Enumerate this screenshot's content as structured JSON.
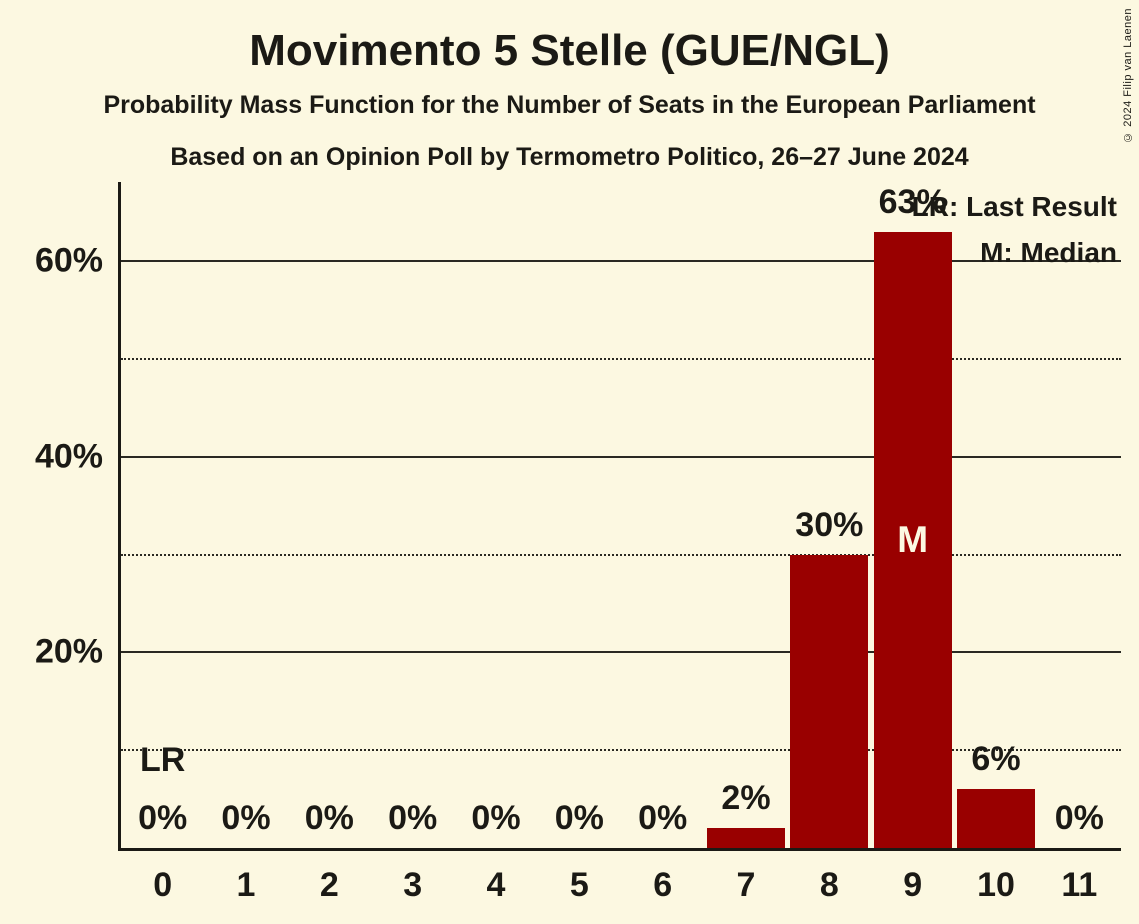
{
  "header": {
    "title": "Movimento 5 Stelle (GUE/NGL)",
    "subtitle": "Probability Mass Function for the Number of Seats in the European Parliament",
    "poll_line": "Based on an Opinion Poll by Termometro Politico, 26–27 June 2024"
  },
  "copyright": "© 2024 Filip van Laenen",
  "legend": {
    "last_result_label": "LR: Last Result",
    "median_label": "M: Median"
  },
  "colors": {
    "background": "#fcf8e1",
    "bar": "#990000",
    "text": "#1b1a15",
    "grid": "#2a2922",
    "marker_on_bar": "#fcf8e1"
  },
  "chart_data": {
    "type": "bar",
    "title": "Movimento 5 Stelle (GUE/NGL)",
    "categories": [
      "0",
      "1",
      "2",
      "3",
      "4",
      "5",
      "6",
      "7",
      "8",
      "9",
      "10",
      "11"
    ],
    "values": [
      0,
      0,
      0,
      0,
      0,
      0,
      0,
      2,
      30,
      63,
      6,
      0
    ],
    "bar_labels": [
      "0%",
      "0%",
      "0%",
      "0%",
      "0%",
      "0%",
      "0%",
      "2%",
      "30%",
      "63%",
      "6%",
      "0%"
    ],
    "xlabel": "",
    "ylabel": "",
    "ylim": [
      0,
      68
    ],
    "y_gridlines": [
      {
        "value": 10,
        "style": "dotted",
        "label": ""
      },
      {
        "value": 20,
        "style": "solid",
        "label": "20%"
      },
      {
        "value": 30,
        "style": "dotted",
        "label": ""
      },
      {
        "value": 40,
        "style": "solid",
        "label": "40%"
      },
      {
        "value": 50,
        "style": "dotted",
        "label": ""
      },
      {
        "value": 60,
        "style": "solid",
        "label": "60%"
      }
    ],
    "median_seat": 9,
    "median_marker_label": "M",
    "last_result_seat": 0,
    "last_result_marker_label": "LR",
    "legend_position": "top-right",
    "grid": true
  }
}
